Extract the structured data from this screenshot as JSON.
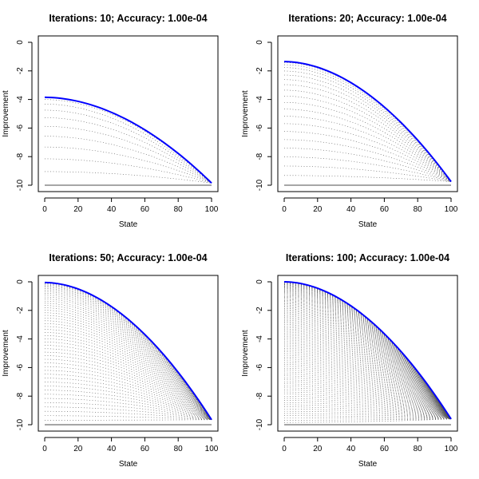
{
  "figure": {
    "description": "Value-iteration convergence panels"
  },
  "chart_data": [
    {
      "type": "line",
      "title": "Iterations: 10; Accuracy: 1.00e-04",
      "xlabel": "State",
      "ylabel": "Improvement",
      "xlim": [
        0,
        100
      ],
      "ylim": [
        -10,
        0
      ],
      "xticks": [
        "0",
        "20",
        "40",
        "60",
        "80",
        "100"
      ],
      "yticks": [
        "0",
        "-2",
        "-4",
        "-6",
        "-8",
        "-10"
      ],
      "iterations": 10,
      "final_curve": {
        "start": -3.85,
        "end": -9.85,
        "color": "#0000ff"
      },
      "intermediate_color": "#555555",
      "baseline": {
        "value": -10,
        "color": "#888888"
      }
    },
    {
      "type": "line",
      "title": "Iterations: 20; Accuracy: 1.00e-04",
      "xlabel": "State",
      "ylabel": "Improvement",
      "xlim": [
        0,
        100
      ],
      "ylim": [
        -10,
        0
      ],
      "xticks": [
        "0",
        "20",
        "40",
        "60",
        "80",
        "100"
      ],
      "yticks": [
        "0",
        "-2",
        "-4",
        "-6",
        "-8",
        "-10"
      ],
      "iterations": 20,
      "final_curve": {
        "start": -1.35,
        "end": -9.75,
        "color": "#0000ff"
      },
      "intermediate_color": "#555555",
      "baseline": {
        "value": -10,
        "color": "#888888"
      }
    },
    {
      "type": "line",
      "title": "Iterations: 50; Accuracy: 1.00e-04",
      "xlabel": "State",
      "ylabel": "Improvement",
      "xlim": [
        0,
        100
      ],
      "ylim": [
        -10,
        0
      ],
      "xticks": [
        "0",
        "20",
        "40",
        "60",
        "80",
        "100"
      ],
      "yticks": [
        "0",
        "-2",
        "-4",
        "-6",
        "-8",
        "-10"
      ],
      "iterations": 50,
      "final_curve": {
        "start": -0.05,
        "end": -9.65,
        "color": "#0000ff"
      },
      "intermediate_color": "#555555",
      "baseline": {
        "value": -10,
        "color": "#888888"
      }
    },
    {
      "type": "line",
      "title": "Iterations: 100; Accuracy: 1.00e-04",
      "xlabel": "State",
      "ylabel": "Improvement",
      "xlim": [
        0,
        100
      ],
      "ylim": [
        -10,
        0
      ],
      "xticks": [
        "0",
        "20",
        "40",
        "60",
        "80",
        "100"
      ],
      "yticks": [
        "0",
        "-2",
        "-4",
        "-6",
        "-8",
        "-10"
      ],
      "iterations": 100,
      "final_curve": {
        "start": 0.0,
        "end": -9.6,
        "color": "#0000ff"
      },
      "intermediate_color": "#555555",
      "baseline": {
        "value": -10,
        "color": "#888888"
      }
    }
  ]
}
